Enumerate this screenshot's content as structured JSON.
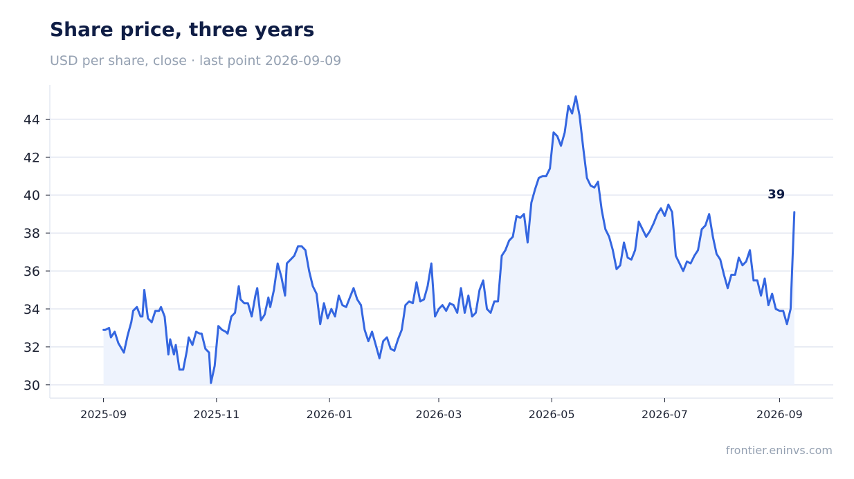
{
  "header": {
    "title": "Share price, three years",
    "subtitle": "USD per share, close · last point 2026-09-09"
  },
  "footer": {
    "source": "frontier.eninvs.com"
  },
  "colors": {
    "line": "#3466e0",
    "area": "#eef3fd",
    "grid": "#e2e6f1",
    "axis": "#dde2ee"
  },
  "chart_data": {
    "type": "area",
    "title": "Share price, three years",
    "subtitle": "USD per share, close · last point 2026-09-09",
    "xlabel": "",
    "ylabel": "",
    "ylim": [
      29.3,
      45.8
    ],
    "xlim": [
      "2025-08-03",
      "2026-09-30"
    ],
    "yticks": [
      30,
      32,
      34,
      36,
      38,
      40,
      42,
      44
    ],
    "xticks": [
      "2025-09",
      "2025-11",
      "2026-01",
      "2026-03",
      "2026-05",
      "2026-07",
      "2026-09"
    ],
    "grid": "horizontal",
    "last_point_label": "39",
    "series": [
      {
        "points": [
          [
            "2025-09-01",
            32.9
          ],
          [
            "2025-09-02",
            32.9
          ],
          [
            "2025-09-04",
            33.0
          ],
          [
            "2025-09-05",
            32.5
          ],
          [
            "2025-09-07",
            32.8
          ],
          [
            "2025-09-09",
            32.2
          ],
          [
            "2025-09-12",
            31.7
          ],
          [
            "2025-09-14",
            32.6
          ],
          [
            "2025-09-16",
            33.3
          ],
          [
            "2025-09-17",
            33.9
          ],
          [
            "2025-09-19",
            34.1
          ],
          [
            "2025-09-21",
            33.6
          ],
          [
            "2025-09-22",
            33.6
          ],
          [
            "2025-09-23",
            35.0
          ],
          [
            "2025-09-25",
            33.5
          ],
          [
            "2025-09-27",
            33.3
          ],
          [
            "2025-09-29",
            33.9
          ],
          [
            "2025-10-01",
            33.9
          ],
          [
            "2025-10-02",
            34.1
          ],
          [
            "2025-10-04",
            33.6
          ],
          [
            "2025-10-06",
            31.6
          ],
          [
            "2025-10-07",
            32.4
          ],
          [
            "2025-10-09",
            31.6
          ],
          [
            "2025-10-10",
            32.1
          ],
          [
            "2025-10-12",
            30.8
          ],
          [
            "2025-10-14",
            30.8
          ],
          [
            "2025-10-16",
            31.8
          ],
          [
            "2025-10-17",
            32.5
          ],
          [
            "2025-10-19",
            32.1
          ],
          [
            "2025-10-21",
            32.8
          ],
          [
            "2025-10-23",
            32.7
          ],
          [
            "2025-10-24",
            32.7
          ],
          [
            "2025-10-26",
            31.9
          ],
          [
            "2025-10-28",
            31.7
          ],
          [
            "2025-10-29",
            30.1
          ],
          [
            "2025-10-31",
            31.0
          ],
          [
            "2025-11-02",
            33.1
          ],
          [
            "2025-11-04",
            32.9
          ],
          [
            "2025-11-06",
            32.8
          ],
          [
            "2025-11-07",
            32.7
          ],
          [
            "2025-11-09",
            33.6
          ],
          [
            "2025-11-11",
            33.8
          ],
          [
            "2025-11-13",
            35.2
          ],
          [
            "2025-11-14",
            34.5
          ],
          [
            "2025-11-16",
            34.3
          ],
          [
            "2025-11-18",
            34.3
          ],
          [
            "2025-11-20",
            33.6
          ],
          [
            "2025-11-22",
            34.7
          ],
          [
            "2025-11-23",
            35.1
          ],
          [
            "2025-11-25",
            33.4
          ],
          [
            "2025-11-27",
            33.7
          ],
          [
            "2025-11-29",
            34.6
          ],
          [
            "2025-11-30",
            34.1
          ],
          [
            "2025-12-02",
            35.0
          ],
          [
            "2025-12-04",
            36.4
          ],
          [
            "2025-12-06",
            35.7
          ],
          [
            "2025-12-08",
            34.7
          ],
          [
            "2025-12-09",
            36.4
          ],
          [
            "2025-12-11",
            36.6
          ],
          [
            "2025-12-13",
            36.8
          ],
          [
            "2025-12-15",
            37.3
          ],
          [
            "2025-12-17",
            37.3
          ],
          [
            "2025-12-19",
            37.1
          ],
          [
            "2025-12-21",
            36.0
          ],
          [
            "2025-12-23",
            35.2
          ],
          [
            "2025-12-25",
            34.8
          ],
          [
            "2025-12-27",
            33.2
          ],
          [
            "2025-12-29",
            34.3
          ],
          [
            "2025-12-31",
            33.5
          ],
          [
            "2026-01-02",
            34.0
          ],
          [
            "2026-01-04",
            33.6
          ],
          [
            "2026-01-06",
            34.7
          ],
          [
            "2026-01-08",
            34.2
          ],
          [
            "2026-01-10",
            34.1
          ],
          [
            "2026-01-12",
            34.6
          ],
          [
            "2026-01-14",
            35.1
          ],
          [
            "2026-01-16",
            34.5
          ],
          [
            "2026-01-18",
            34.2
          ],
          [
            "2026-01-20",
            32.9
          ],
          [
            "2026-01-22",
            32.3
          ],
          [
            "2026-01-24",
            32.8
          ],
          [
            "2026-01-26",
            32.1
          ],
          [
            "2026-01-28",
            31.4
          ],
          [
            "2026-01-30",
            32.3
          ],
          [
            "2026-02-01",
            32.5
          ],
          [
            "2026-02-03",
            31.9
          ],
          [
            "2026-02-05",
            31.8
          ],
          [
            "2026-02-07",
            32.4
          ],
          [
            "2026-02-09",
            32.9
          ],
          [
            "2026-02-11",
            34.2
          ],
          [
            "2026-02-13",
            34.4
          ],
          [
            "2026-02-15",
            34.3
          ],
          [
            "2026-02-17",
            35.4
          ],
          [
            "2026-02-19",
            34.4
          ],
          [
            "2026-02-21",
            34.5
          ],
          [
            "2026-02-23",
            35.2
          ],
          [
            "2026-02-25",
            36.4
          ],
          [
            "2026-02-27",
            33.6
          ],
          [
            "2026-03-01",
            34.0
          ],
          [
            "2026-03-03",
            34.2
          ],
          [
            "2026-03-05",
            33.9
          ],
          [
            "2026-03-07",
            34.3
          ],
          [
            "2026-03-09",
            34.2
          ],
          [
            "2026-03-11",
            33.8
          ],
          [
            "2026-03-13",
            35.1
          ],
          [
            "2026-03-15",
            33.8
          ],
          [
            "2026-03-17",
            34.7
          ],
          [
            "2026-03-19",
            33.6
          ],
          [
            "2026-03-21",
            33.8
          ],
          [
            "2026-03-23",
            35.0
          ],
          [
            "2026-03-25",
            35.5
          ],
          [
            "2026-03-27",
            34.0
          ],
          [
            "2026-03-29",
            33.8
          ],
          [
            "2026-03-31",
            34.4
          ],
          [
            "2026-04-02",
            34.4
          ],
          [
            "2026-04-04",
            36.8
          ],
          [
            "2026-04-06",
            37.1
          ],
          [
            "2026-04-08",
            37.6
          ],
          [
            "2026-04-10",
            37.8
          ],
          [
            "2026-04-12",
            38.9
          ],
          [
            "2026-04-14",
            38.8
          ],
          [
            "2026-04-16",
            39.0
          ],
          [
            "2026-04-18",
            37.5
          ],
          [
            "2026-04-20",
            39.6
          ],
          [
            "2026-04-22",
            40.3
          ],
          [
            "2026-04-24",
            40.9
          ],
          [
            "2026-04-26",
            41.0
          ],
          [
            "2026-04-28",
            41.0
          ],
          [
            "2026-04-30",
            41.4
          ],
          [
            "2026-05-02",
            43.3
          ],
          [
            "2026-05-04",
            43.1
          ],
          [
            "2026-05-06",
            42.6
          ],
          [
            "2026-05-08",
            43.3
          ],
          [
            "2026-05-10",
            44.7
          ],
          [
            "2026-05-12",
            44.3
          ],
          [
            "2026-05-14",
            45.2
          ],
          [
            "2026-05-16",
            44.2
          ],
          [
            "2026-05-18",
            42.5
          ],
          [
            "2026-05-20",
            40.9
          ],
          [
            "2026-05-22",
            40.5
          ],
          [
            "2026-05-24",
            40.4
          ],
          [
            "2026-05-26",
            40.7
          ],
          [
            "2026-05-28",
            39.2
          ],
          [
            "2026-05-30",
            38.2
          ],
          [
            "2026-06-01",
            37.8
          ],
          [
            "2026-06-03",
            37.1
          ],
          [
            "2026-06-05",
            36.1
          ],
          [
            "2026-06-07",
            36.3
          ],
          [
            "2026-06-09",
            37.5
          ],
          [
            "2026-06-11",
            36.7
          ],
          [
            "2026-06-13",
            36.6
          ],
          [
            "2026-06-15",
            37.1
          ],
          [
            "2026-06-17",
            38.6
          ],
          [
            "2026-06-19",
            38.2
          ],
          [
            "2026-06-21",
            37.8
          ],
          [
            "2026-06-23",
            38.1
          ],
          [
            "2026-06-25",
            38.5
          ],
          [
            "2026-06-27",
            39.0
          ],
          [
            "2026-06-29",
            39.3
          ],
          [
            "2026-07-01",
            38.9
          ],
          [
            "2026-07-03",
            39.5
          ],
          [
            "2026-07-05",
            39.1
          ],
          [
            "2026-07-07",
            36.8
          ],
          [
            "2026-07-09",
            36.4
          ],
          [
            "2026-07-11",
            36.0
          ],
          [
            "2026-07-13",
            36.5
          ],
          [
            "2026-07-15",
            36.4
          ],
          [
            "2026-07-17",
            36.8
          ],
          [
            "2026-07-19",
            37.1
          ],
          [
            "2026-07-21",
            38.2
          ],
          [
            "2026-07-23",
            38.4
          ],
          [
            "2026-07-25",
            39.0
          ],
          [
            "2026-07-27",
            37.8
          ],
          [
            "2026-07-29",
            36.9
          ],
          [
            "2026-07-31",
            36.6
          ],
          [
            "2026-08-02",
            35.8
          ],
          [
            "2026-08-04",
            35.1
          ],
          [
            "2026-08-06",
            35.8
          ],
          [
            "2026-08-08",
            35.8
          ],
          [
            "2026-08-10",
            36.7
          ],
          [
            "2026-08-12",
            36.3
          ],
          [
            "2026-08-14",
            36.5
          ],
          [
            "2026-08-16",
            37.1
          ],
          [
            "2026-08-18",
            35.5
          ],
          [
            "2026-08-20",
            35.5
          ],
          [
            "2026-08-22",
            34.7
          ],
          [
            "2026-08-24",
            35.6
          ],
          [
            "2026-08-26",
            34.2
          ],
          [
            "2026-08-28",
            34.8
          ],
          [
            "2026-08-30",
            34.0
          ],
          [
            "2026-09-01",
            33.9
          ],
          [
            "2026-09-03",
            33.9
          ],
          [
            "2026-09-05",
            33.2
          ],
          [
            "2026-09-07",
            34.0
          ],
          [
            "2026-09-09",
            39.1
          ]
        ]
      }
    ]
  }
}
